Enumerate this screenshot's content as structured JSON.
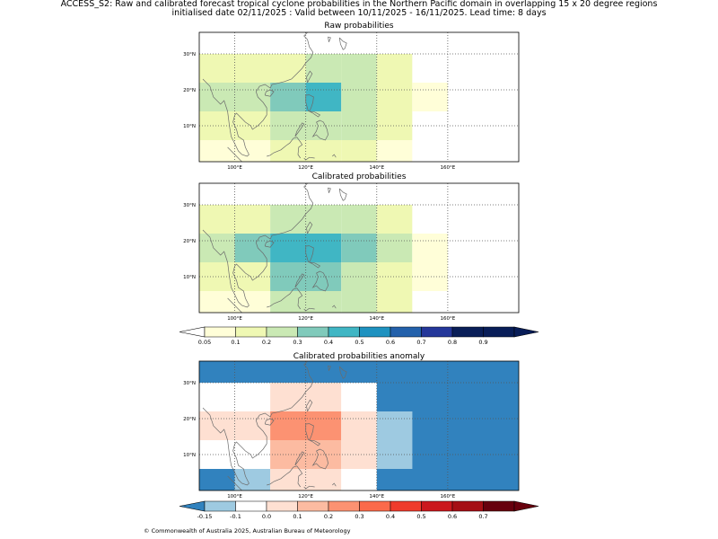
{
  "header": {
    "line1": "ACCESS_S2: Raw and calibrated forecast tropical cyclone probabilities in the Northern Pacific domain in overlapping 15 x 20 degree regions",
    "line2": "initialised date 02/11/2025 :  Valid between 10/11/2025 - 16/11/2025. Lead time: 8 days"
  },
  "panels": [
    {
      "id": "raw",
      "title": "Raw probabilities"
    },
    {
      "id": "calibrated",
      "title": "Calibrated probabilities"
    },
    {
      "id": "anomaly",
      "title": "Calibrated probabilities anomaly"
    }
  ],
  "axes": {
    "x_ticks": [
      "100°E",
      "120°E",
      "140°E",
      "160°E"
    ],
    "y_ticks": [
      "30°N",
      "20°N",
      "10°N"
    ]
  },
  "colors": {
    "prob_scale": [
      "#ffffff",
      "#fffed8",
      "#eff8b3",
      "#cae9b4",
      "#80cabb",
      "#40b6c4",
      "#1e92c0",
      "#2361ab",
      "#24379a",
      "#091e58",
      "#081d58"
    ],
    "anom_scale": [
      "#3182be",
      "#9ecae1",
      "#ffffff",
      "#fee0d2",
      "#fcbba1",
      "#fc9272",
      "#fb6a4a",
      "#ef3b2c",
      "#cb181d",
      "#a50f15",
      "#67000d"
    ],
    "coast": "#6b6b6b"
  },
  "chart_data": [
    {
      "type": "heatmap",
      "title": "Raw probabilities",
      "lon_range": [
        90,
        180
      ],
      "lat_range": [
        0,
        36
      ],
      "cells": [
        {
          "lon": [
            90,
            130
          ],
          "lat": [
            22,
            30
          ],
          "class": 2
        },
        {
          "lon": [
            130,
            140
          ],
          "lat": [
            22,
            30
          ],
          "class": 3
        },
        {
          "lon": [
            130,
            140
          ],
          "lat": [
            30,
            30
          ],
          "class": 3
        },
        {
          "lon": [
            120,
            130
          ],
          "lat": [
            22,
            30
          ],
          "class": 3
        },
        {
          "lon": [
            140,
            150
          ],
          "lat": [
            22,
            30
          ],
          "class": 2
        },
        {
          "lon": [
            90,
            110
          ],
          "lat": [
            14,
            22
          ],
          "class": 3
        },
        {
          "lon": [
            110,
            120
          ],
          "lat": [
            14,
            22
          ],
          "class": 4
        },
        {
          "lon": [
            120,
            130
          ],
          "lat": [
            14,
            22
          ],
          "class": 5
        },
        {
          "lon": [
            130,
            140
          ],
          "lat": [
            14,
            22
          ],
          "class": 3
        },
        {
          "lon": [
            140,
            150
          ],
          "lat": [
            14,
            22
          ],
          "class": 2
        },
        {
          "lon": [
            150,
            160
          ],
          "lat": [
            14,
            22
          ],
          "class": 1
        },
        {
          "lon": [
            90,
            110
          ],
          "lat": [
            6,
            14
          ],
          "class": 2
        },
        {
          "lon": [
            110,
            130
          ],
          "lat": [
            6,
            14
          ],
          "class": 3
        },
        {
          "lon": [
            130,
            140
          ],
          "lat": [
            6,
            14
          ],
          "class": 3
        },
        {
          "lon": [
            140,
            150
          ],
          "lat": [
            6,
            14
          ],
          "class": 2
        },
        {
          "lon": [
            90,
            110
          ],
          "lat": [
            0,
            6
          ],
          "class": 1
        },
        {
          "lon": [
            110,
            130
          ],
          "lat": [
            0,
            6
          ],
          "class": 2
        },
        {
          "lon": [
            130,
            140
          ],
          "lat": [
            0,
            6
          ],
          "class": 2
        },
        {
          "lon": [
            140,
            150
          ],
          "lat": [
            0,
            6
          ],
          "class": 1
        }
      ]
    },
    {
      "type": "heatmap",
      "title": "Calibrated probabilities",
      "lon_range": [
        90,
        180
      ],
      "lat_range": [
        0,
        36
      ],
      "cells": [
        {
          "lon": [
            90,
            110
          ],
          "lat": [
            22,
            30
          ],
          "class": 2
        },
        {
          "lon": [
            110,
            130
          ],
          "lat": [
            22,
            30
          ],
          "class": 3
        },
        {
          "lon": [
            130,
            140
          ],
          "lat": [
            22,
            30
          ],
          "class": 3
        },
        {
          "lon": [
            140,
            150
          ],
          "lat": [
            22,
            30
          ],
          "class": 2
        },
        {
          "lon": [
            90,
            100
          ],
          "lat": [
            14,
            22
          ],
          "class": 3
        },
        {
          "lon": [
            100,
            110
          ],
          "lat": [
            14,
            22
          ],
          "class": 4
        },
        {
          "lon": [
            110,
            130
          ],
          "lat": [
            14,
            22
          ],
          "class": 5
        },
        {
          "lon": [
            130,
            140
          ],
          "lat": [
            14,
            22
          ],
          "class": 4
        },
        {
          "lon": [
            140,
            150
          ],
          "lat": [
            14,
            22
          ],
          "class": 3
        },
        {
          "lon": [
            150,
            160
          ],
          "lat": [
            14,
            22
          ],
          "class": 1
        },
        {
          "lon": [
            90,
            110
          ],
          "lat": [
            6,
            14
          ],
          "class": 2
        },
        {
          "lon": [
            110,
            130
          ],
          "lat": [
            6,
            14
          ],
          "class": 4
        },
        {
          "lon": [
            130,
            140
          ],
          "lat": [
            6,
            14
          ],
          "class": 3
        },
        {
          "lon": [
            140,
            150
          ],
          "lat": [
            6,
            14
          ],
          "class": 2
        },
        {
          "lon": [
            150,
            160
          ],
          "lat": [
            6,
            14
          ],
          "class": 1
        },
        {
          "lon": [
            90,
            110
          ],
          "lat": [
            0,
            6
          ],
          "class": 1
        },
        {
          "lon": [
            110,
            130
          ],
          "lat": [
            0,
            6
          ],
          "class": 3
        },
        {
          "lon": [
            130,
            140
          ],
          "lat": [
            0,
            6
          ],
          "class": 3
        },
        {
          "lon": [
            140,
            150
          ],
          "lat": [
            0,
            6
          ],
          "class": 2
        }
      ],
      "colorbar": {
        "ticks": [
          "0.05",
          "0.1",
          "0.2",
          "0.3",
          "0.4",
          "0.5",
          "0.6",
          "0.7",
          "0.8",
          "0.9"
        ]
      }
    },
    {
      "type": "heatmap",
      "title": "Calibrated probabilities anomaly",
      "lon_range": [
        90,
        180
      ],
      "lat_range": [
        0,
        36
      ],
      "cells": [
        {
          "lon": [
            90,
            180
          ],
          "lat": [
            30,
            36
          ],
          "class": 0
        },
        {
          "lon": [
            90,
            110
          ],
          "lat": [
            22,
            30
          ],
          "class": 2
        },
        {
          "lon": [
            110,
            130
          ],
          "lat": [
            22,
            30
          ],
          "class": 3
        },
        {
          "lon": [
            130,
            140
          ],
          "lat": [
            22,
            30
          ],
          "class": 2
        },
        {
          "lon": [
            140,
            180
          ],
          "lat": [
            22,
            30
          ],
          "class": 0
        },
        {
          "lon": [
            90,
            100
          ],
          "lat": [
            14,
            22
          ],
          "class": 3
        },
        {
          "lon": [
            100,
            110
          ],
          "lat": [
            14,
            22
          ],
          "class": 3
        },
        {
          "lon": [
            110,
            130
          ],
          "lat": [
            14,
            22
          ],
          "class": 5
        },
        {
          "lon": [
            130,
            140
          ],
          "lat": [
            14,
            22
          ],
          "class": 3
        },
        {
          "lon": [
            140,
            150
          ],
          "lat": [
            14,
            22
          ],
          "class": 1
        },
        {
          "lon": [
            150,
            180
          ],
          "lat": [
            14,
            22
          ],
          "class": 0
        },
        {
          "lon": [
            90,
            110
          ],
          "lat": [
            6,
            14
          ],
          "class": 2
        },
        {
          "lon": [
            110,
            130
          ],
          "lat": [
            6,
            14
          ],
          "class": 4
        },
        {
          "lon": [
            130,
            140
          ],
          "lat": [
            6,
            14
          ],
          "class": 3
        },
        {
          "lon": [
            140,
            150
          ],
          "lat": [
            6,
            14
          ],
          "class": 1
        },
        {
          "lon": [
            150,
            180
          ],
          "lat": [
            6,
            14
          ],
          "class": 0
        },
        {
          "lon": [
            90,
            100
          ],
          "lat": [
            0,
            6
          ],
          "class": 0
        },
        {
          "lon": [
            100,
            110
          ],
          "lat": [
            0,
            6
          ],
          "class": 1
        },
        {
          "lon": [
            110,
            130
          ],
          "lat": [
            0,
            6
          ],
          "class": 3
        },
        {
          "lon": [
            130,
            140
          ],
          "lat": [
            0,
            6
          ],
          "class": 2
        },
        {
          "lon": [
            140,
            180
          ],
          "lat": [
            0,
            6
          ],
          "class": 0
        }
      ],
      "colorbar": {
        "ticks": [
          "-0.15",
          "-0.1",
          "0.0",
          "0.1",
          "0.2",
          "0.3",
          "0.4",
          "0.5",
          "0.6",
          "0.7"
        ]
      }
    }
  ],
  "footer": "© Commonwealth of Australia 2025, Australian Bureau of Meteorology"
}
